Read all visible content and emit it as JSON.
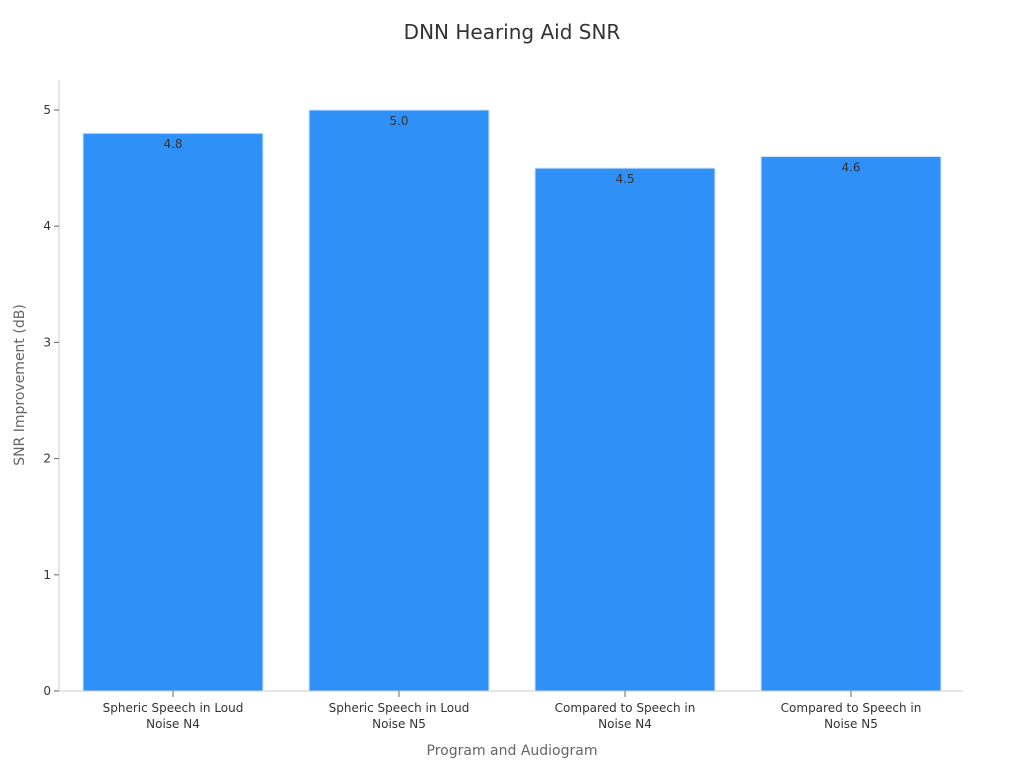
{
  "chart_data": {
    "type": "bar",
    "title": "DNN Hearing Aid SNR",
    "xlabel": "Program and Audiogram",
    "ylabel": "SNR Improvement (dB)",
    "categories": [
      [
        "Spheric Speech in Loud",
        "Noise N4"
      ],
      [
        "Spheric Speech in Loud",
        "Noise N5"
      ],
      [
        "Compared to Speech in",
        "Noise N4"
      ],
      [
        "Compared to Speech in",
        "Noise N5"
      ]
    ],
    "values": [
      4.8,
      5.0,
      4.5,
      4.6
    ],
    "data_labels": [
      "4.8",
      "5.0",
      "4.5",
      "4.6"
    ],
    "ylim": [
      0,
      5.2
    ],
    "yticks": [
      0,
      1,
      2,
      3,
      4,
      5
    ],
    "grid": false,
    "legend": "none",
    "colors": {
      "bar": "#2f91f8",
      "bar_edge": "#d8e6f7",
      "axis": "#cccccc",
      "text": "#333333",
      "label": "#666666"
    }
  }
}
